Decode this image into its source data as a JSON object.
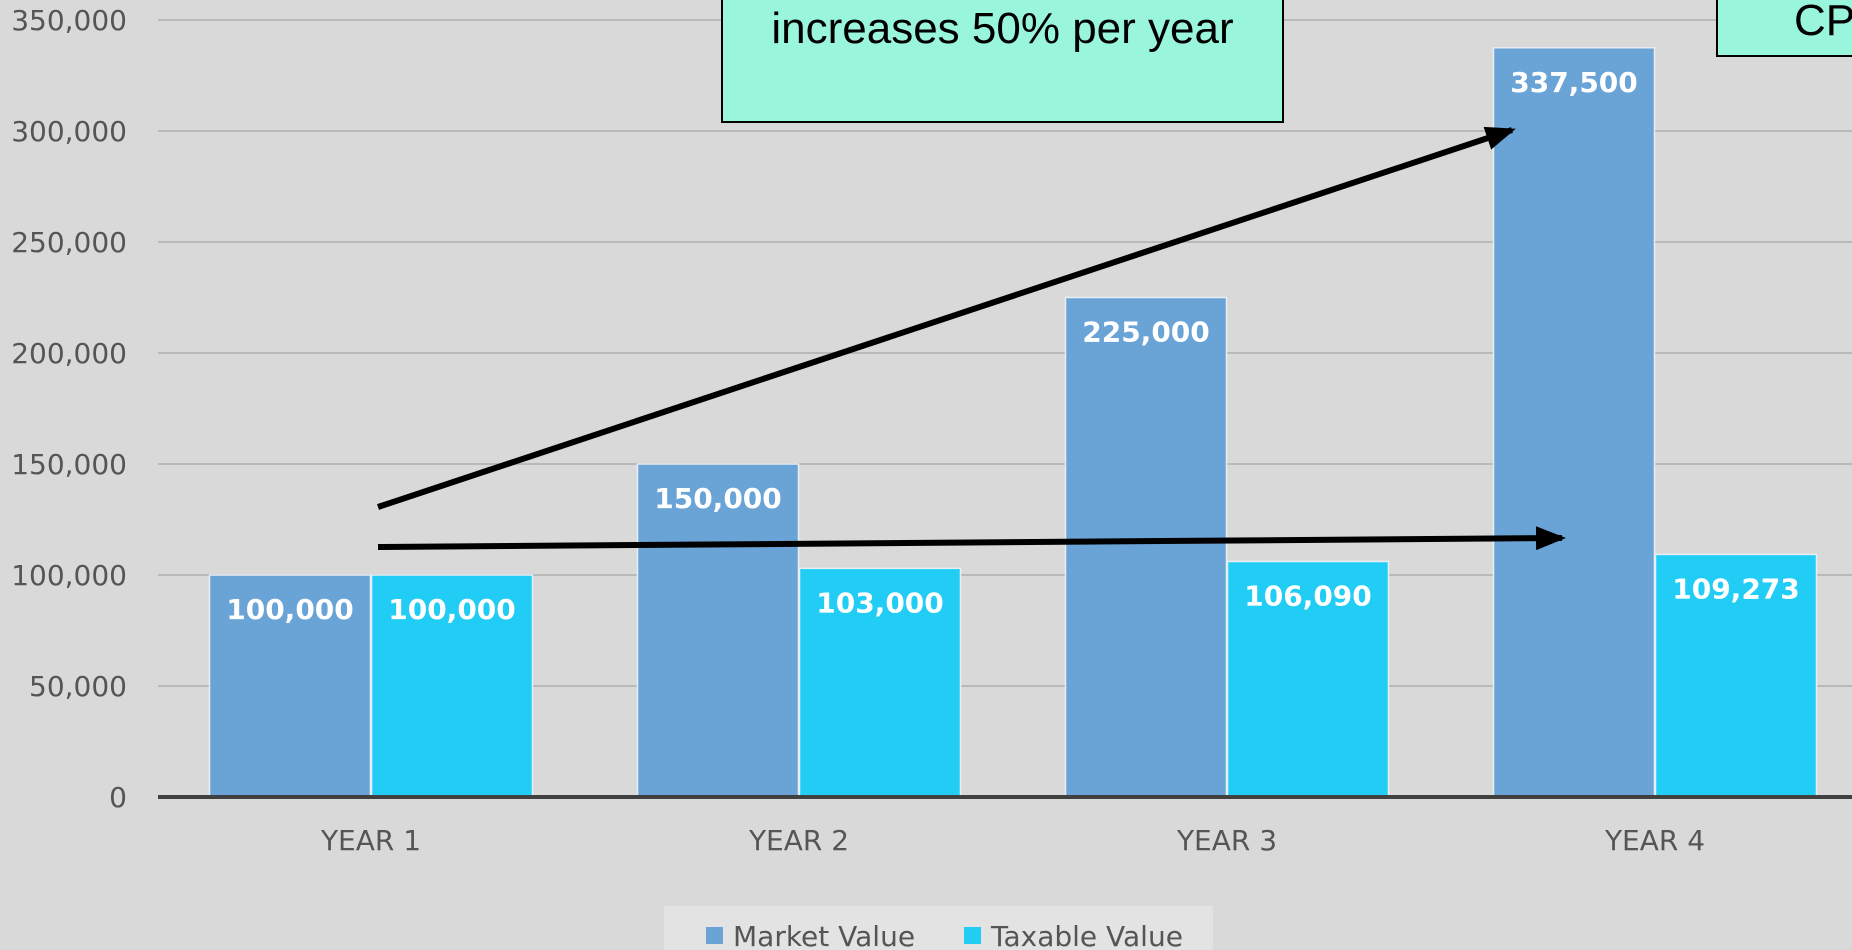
{
  "colors": {
    "background": "#d9d9d9",
    "market": "#6aa3d6",
    "taxable": "#22cdf5",
    "gridline": "#b9b9b9",
    "axis": "#404040",
    "callout_bg": "#99f5dc",
    "arrow": "#000000"
  },
  "callouts": [
    {
      "text": "increases 50% per year"
    },
    {
      "text": "CP"
    }
  ],
  "legend": {
    "market_label": "Market Value",
    "taxable_label": "Taxable Value"
  },
  "chart_data": {
    "type": "bar",
    "categories": [
      "YEAR 1",
      "YEAR 2",
      "YEAR 3",
      "YEAR 4"
    ],
    "series": [
      {
        "name": "Market Value",
        "values": [
          100000,
          150000,
          225000,
          337500
        ],
        "labels": [
          "100,000",
          "150,000",
          "225,000",
          "337,500"
        ]
      },
      {
        "name": "Taxable Value",
        "values": [
          100000,
          103000,
          106090,
          109273
        ],
        "labels": [
          "100,000",
          "103,000",
          "106,090",
          "109,273"
        ]
      }
    ],
    "yticks": [
      "0",
      "50,000",
      "100,000",
      "150,000",
      "200,000",
      "250,000",
      "300,000",
      "350,000"
    ],
    "ytick_values": [
      0,
      50000,
      100000,
      150000,
      200000,
      250000,
      300000,
      350000
    ],
    "ylim": [
      0,
      350000
    ],
    "grid": true,
    "legend_position": "bottom"
  }
}
